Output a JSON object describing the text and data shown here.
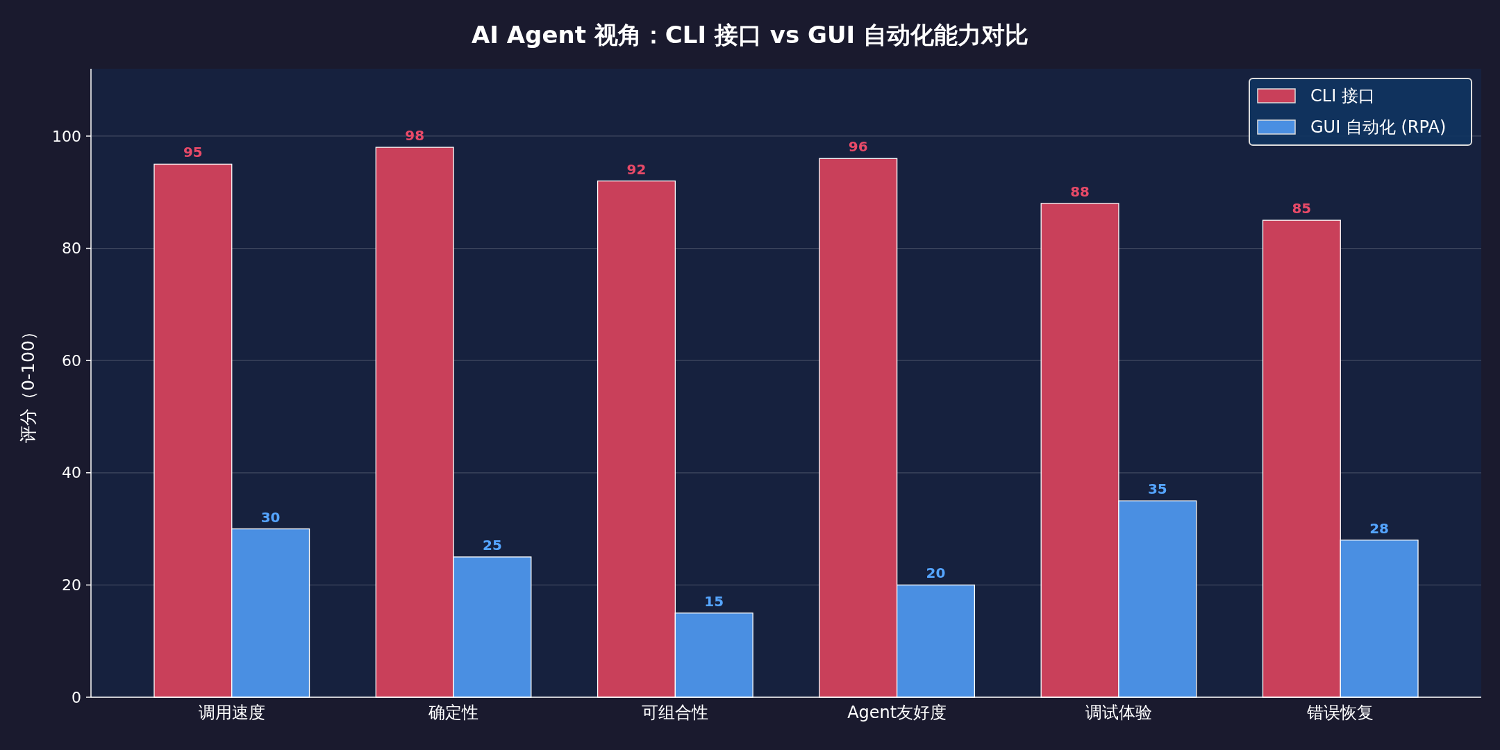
{
  "chart_data": {
    "type": "bar",
    "title": "AI Agent 视角：CLI 接口 vs GUI 自动化能力对比",
    "ylabel": "评分（0-100）",
    "categories": [
      "调用速度",
      "确定性",
      "可组合性",
      "Agent友好度",
      "调试体验",
      "错误恢复"
    ],
    "series": [
      {
        "name": "CLI 接口",
        "color": "#c9405a",
        "values": [
          95,
          98,
          92,
          96,
          88,
          85
        ]
      },
      {
        "name": "GUI 自动化 (RPA)",
        "color": "#4a8fe2",
        "values": [
          30,
          25,
          15,
          20,
          35,
          28
        ]
      }
    ],
    "ylim": [
      0,
      112
    ],
    "yticks": [
      0,
      20,
      40,
      60,
      80,
      100
    ],
    "grid": "y",
    "legend": "top right",
    "data_labels": true
  }
}
